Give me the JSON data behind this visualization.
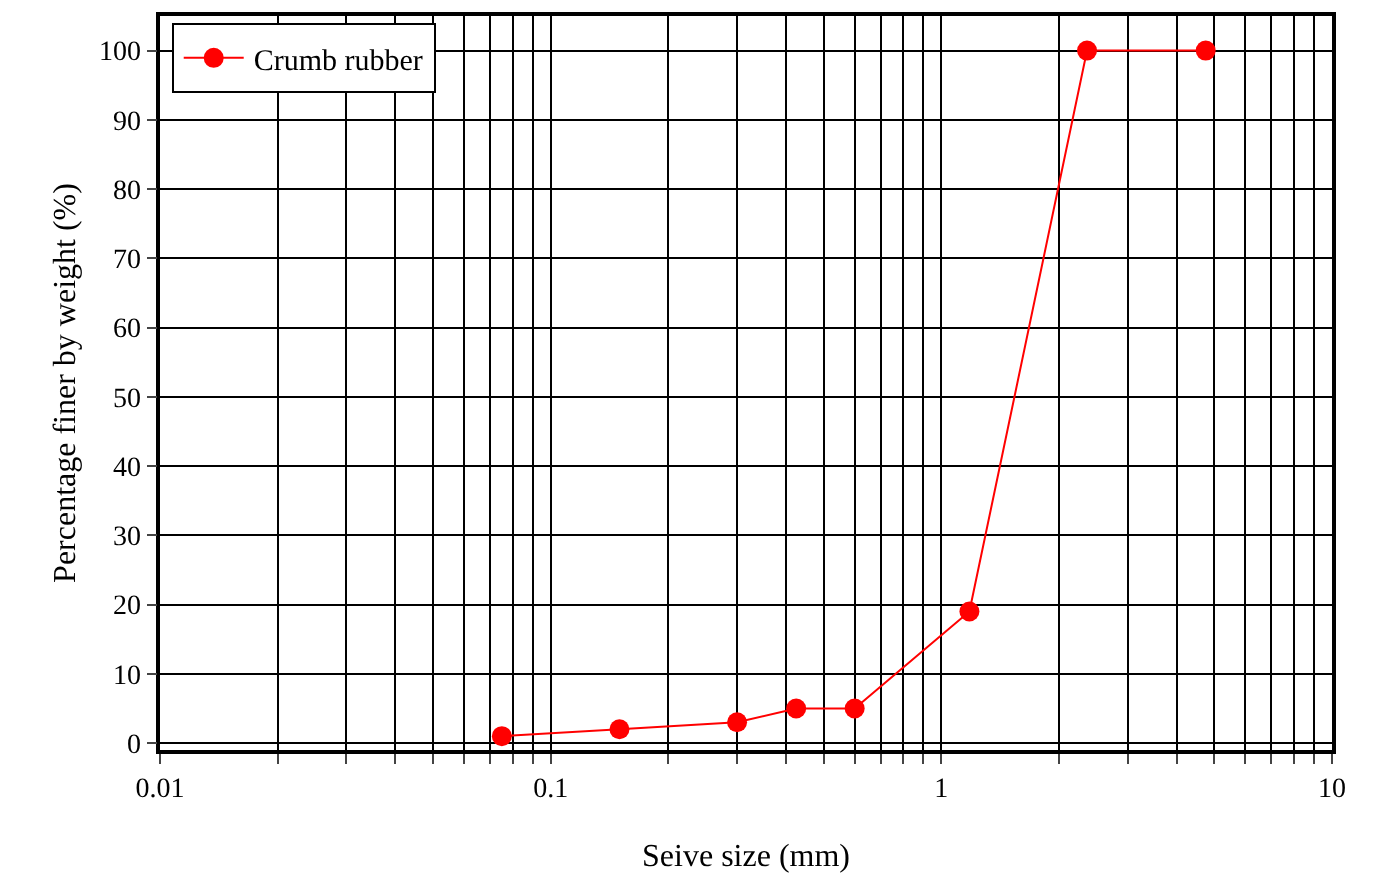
{
  "chart_data": {
    "type": "line",
    "xlabel": "Seive size (mm)",
    "ylabel": "Percentage finer by weight (%)",
    "x": [
      0.075,
      0.15,
      0.3,
      0.425,
      0.6,
      1.18,
      2.36,
      4.75
    ],
    "series": [
      {
        "name": "Crumb rubber",
        "color": "#ff0000",
        "values": [
          1,
          2,
          3,
          5,
          5,
          19,
          100,
          100
        ]
      }
    ],
    "log": "x",
    "xlim": [
      0.01,
      10
    ],
    "ylim": [
      -1,
      105
    ],
    "xticks": [
      0.01,
      {
        "value": 0.02,
        "label": null
      },
      {
        "value": 0.03,
        "label": null
      },
      {
        "value": 0.04,
        "label": null
      },
      {
        "value": 0.05,
        "label": null
      },
      {
        "value": 0.06,
        "label": null
      },
      {
        "value": 0.07,
        "label": null
      },
      {
        "value": 0.08,
        "label": null
      },
      {
        "value": 0.09,
        "label": null
      },
      0.1,
      {
        "value": 0.2,
        "label": null
      },
      {
        "value": 0.3,
        "label": null
      },
      {
        "value": 0.4,
        "label": null
      },
      {
        "value": 0.5,
        "label": null
      },
      {
        "value": 0.6,
        "label": null
      },
      {
        "value": 0.7,
        "label": null
      },
      {
        "value": 0.8,
        "label": null
      },
      {
        "value": 0.9,
        "label": null
      },
      1,
      {
        "value": 2,
        "label": null
      },
      {
        "value": 3,
        "label": null
      },
      {
        "value": 4,
        "label": null
      },
      {
        "value": 5,
        "label": null
      },
      {
        "value": 6,
        "label": null
      },
      {
        "value": 7,
        "label": null
      },
      {
        "value": 8,
        "label": null
      },
      {
        "value": 9,
        "label": null
      },
      10
    ],
    "yticks": [
      0,
      10,
      20,
      30,
      40,
      50,
      60,
      70,
      80,
      90,
      100
    ],
    "grid": true,
    "legend": "top left",
    "marker": "circle",
    "line_style": "solid"
  }
}
